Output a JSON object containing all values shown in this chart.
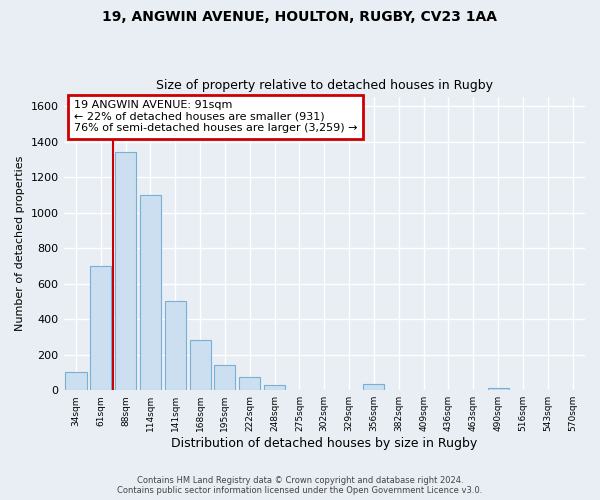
{
  "title1": "19, ANGWIN AVENUE, HOULTON, RUGBY, CV23 1AA",
  "title2": "Size of property relative to detached houses in Rugby",
  "xlabel": "Distribution of detached houses by size in Rugby",
  "ylabel": "Number of detached properties",
  "bar_labels": [
    "34sqm",
    "61sqm",
    "88sqm",
    "114sqm",
    "141sqm",
    "168sqm",
    "195sqm",
    "222sqm",
    "248sqm",
    "275sqm",
    "302sqm",
    "329sqm",
    "356sqm",
    "382sqm",
    "409sqm",
    "436sqm",
    "463sqm",
    "490sqm",
    "516sqm",
    "543sqm",
    "570sqm"
  ],
  "bar_heights": [
    100,
    700,
    1340,
    1100,
    500,
    285,
    140,
    75,
    30,
    0,
    0,
    0,
    35,
    0,
    0,
    0,
    0,
    15,
    0,
    0,
    0
  ],
  "bar_color": "#ccdff0",
  "bar_edge_color": "#7aafd4",
  "annotation_title": "19 ANGWIN AVENUE: 91sqm",
  "annotation_line1": "← 22% of detached houses are smaller (931)",
  "annotation_line2": "76% of semi-detached houses are larger (3,259) →",
  "annotation_box_facecolor": "#ffffff",
  "annotation_box_edgecolor": "#cc0000",
  "ylim": [
    0,
    1650
  ],
  "yticks": [
    0,
    200,
    400,
    600,
    800,
    1000,
    1200,
    1400,
    1600
  ],
  "footer1": "Contains HM Land Registry data © Crown copyright and database right 2024.",
  "footer2": "Contains public sector information licensed under the Open Government Licence v3.0.",
  "background_color": "#e8eef4",
  "grid_color": "#ffffff",
  "red_line_color": "#cc0000",
  "red_line_x": 1.5
}
